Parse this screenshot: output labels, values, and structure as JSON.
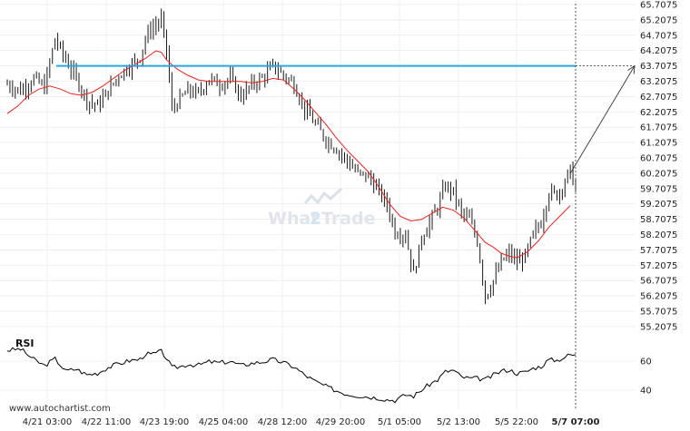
{
  "chart_data": [
    {
      "type": "candlestick",
      "title": "",
      "y_ticks": [
        "65.7075",
        "65.2075",
        "64.7075",
        "64.2075",
        "63.7075",
        "63.2075",
        "62.7075",
        "62.2075",
        "61.7075",
        "61.2075",
        "60.7075",
        "60.2075",
        "59.7075",
        "59.2075",
        "58.7075",
        "58.2075",
        "57.7075",
        "57.2075",
        "56.7075",
        "56.2075",
        "55.7075",
        "55.2075"
      ],
      "ylim": [
        55.0,
        65.85
      ],
      "x_ticks": [
        "4/21 03:00",
        "4/22 11:00",
        "4/23 19:00",
        "4/25 04:00",
        "4/28 12:00",
        "4/29 20:00",
        "5/1 05:00",
        "5/2 13:00",
        "5/5 22:00",
        "5/7 07:00"
      ],
      "resistance_level": 63.7075,
      "close_path": [
        [
          0,
          63.1
        ],
        [
          5,
          62.9
        ],
        [
          10,
          63.3
        ],
        [
          14,
          63.0
        ],
        [
          18,
          64.6
        ],
        [
          22,
          63.9
        ],
        [
          26,
          63.3
        ],
        [
          30,
          62.6
        ],
        [
          34,
          62.4
        ],
        [
          38,
          62.9
        ],
        [
          42,
          63.4
        ],
        [
          46,
          63.7
        ],
        [
          50,
          64.0
        ],
        [
          52,
          64.6
        ],
        [
          54,
          64.9
        ],
        [
          58,
          65.2
        ],
        [
          60,
          64.2
        ],
        [
          62,
          62.3
        ],
        [
          65,
          62.6
        ],
        [
          68,
          62.9
        ],
        [
          72,
          62.8
        ],
        [
          76,
          63.3
        ],
        [
          80,
          63.1
        ],
        [
          84,
          63.3
        ],
        [
          88,
          62.7
        ],
        [
          92,
          63.1
        ],
        [
          96,
          63.3
        ],
        [
          100,
          63.7
        ],
        [
          104,
          63.4
        ],
        [
          108,
          63.1
        ],
        [
          112,
          62.3
        ],
        [
          116,
          61.8
        ],
        [
          120,
          61.3
        ],
        [
          124,
          61.0
        ],
        [
          128,
          60.6
        ],
        [
          132,
          60.2
        ],
        [
          136,
          60.1
        ],
        [
          140,
          59.6
        ],
        [
          143,
          59.2
        ],
        [
          146,
          58.3
        ],
        [
          150,
          58.2
        ],
        [
          153,
          56.9
        ],
        [
          156,
          58.1
        ],
        [
          159,
          58.6
        ],
        [
          162,
          59.1
        ],
        [
          165,
          59.8
        ],
        [
          168,
          59.6
        ],
        [
          171,
          58.9
        ],
        [
          174,
          58.7
        ],
        [
          177,
          58.0
        ],
        [
          180,
          56.2
        ],
        [
          183,
          56.7
        ],
        [
          186,
          57.3
        ],
        [
          189,
          57.6
        ],
        [
          192,
          57.3
        ],
        [
          195,
          57.5
        ],
        [
          198,
          58.2
        ],
        [
          201,
          58.6
        ],
        [
          204,
          59.6
        ],
        [
          207,
          59.5
        ],
        [
          209,
          59.8
        ],
        [
          212,
          60.3
        ],
        [
          214,
          59.7
        ]
      ],
      "moving_average": [
        [
          0,
          62.15
        ],
        [
          4,
          62.4
        ],
        [
          8,
          62.75
        ],
        [
          12,
          62.95
        ],
        [
          16,
          63.05
        ],
        [
          20,
          62.95
        ],
        [
          24,
          62.8
        ],
        [
          28,
          62.75
        ],
        [
          32,
          62.85
        ],
        [
          36,
          63.05
        ],
        [
          40,
          63.3
        ],
        [
          44,
          63.55
        ],
        [
          48,
          63.75
        ],
        [
          52,
          63.95
        ],
        [
          56,
          64.2
        ],
        [
          58,
          64.15
        ],
        [
          60,
          63.9
        ],
        [
          64,
          63.6
        ],
        [
          68,
          63.4
        ],
        [
          72,
          63.25
        ],
        [
          76,
          63.2
        ],
        [
          80,
          63.2
        ],
        [
          84,
          63.2
        ],
        [
          88,
          63.2
        ],
        [
          92,
          63.15
        ],
        [
          96,
          63.2
        ],
        [
          100,
          63.3
        ],
        [
          104,
          63.25
        ],
        [
          108,
          62.95
        ],
        [
          112,
          62.6
        ],
        [
          116,
          62.2
        ],
        [
          120,
          61.8
        ],
        [
          124,
          61.35
        ],
        [
          128,
          60.95
        ],
        [
          132,
          60.6
        ],
        [
          136,
          60.25
        ],
        [
          140,
          59.75
        ],
        [
          144,
          59.2
        ],
        [
          148,
          58.8
        ],
        [
          152,
          58.65
        ],
        [
          156,
          58.7
        ],
        [
          160,
          58.9
        ],
        [
          164,
          59.1
        ],
        [
          168,
          59.0
        ],
        [
          172,
          58.75
        ],
        [
          176,
          58.35
        ],
        [
          180,
          57.95
        ],
        [
          183,
          57.8
        ],
        [
          186,
          57.6
        ],
        [
          189,
          57.5
        ],
        [
          192,
          57.45
        ],
        [
          196,
          57.65
        ],
        [
          200,
          58.0
        ],
        [
          204,
          58.45
        ],
        [
          208,
          58.8
        ],
        [
          212,
          59.15
        ]
      ],
      "projection": {
        "from": [
          212,
          60.2
        ],
        "to": [
          224,
          63.7075
        ]
      }
    },
    {
      "type": "line",
      "title": "RSI",
      "y_ticks": [
        "60",
        "40"
      ],
      "ylim": [
        30,
        76
      ],
      "values": [
        [
          0,
          67.5
        ],
        [
          5,
          68.4
        ],
        [
          10,
          61.1
        ],
        [
          14,
          56.9
        ],
        [
          18,
          61.6
        ],
        [
          22,
          53.2
        ],
        [
          26,
          54.6
        ],
        [
          30,
          50.6
        ],
        [
          34,
          51.7
        ],
        [
          38,
          55.7
        ],
        [
          42,
          58.3
        ],
        [
          46,
          60.3
        ],
        [
          50,
          61.3
        ],
        [
          52,
          65.0
        ],
        [
          54,
          64.5
        ],
        [
          58,
          66.6
        ],
        [
          60,
          62.0
        ],
        [
          62,
          55.4
        ],
        [
          65,
          56.2
        ],
        [
          68,
          57.8
        ],
        [
          72,
          57.2
        ],
        [
          76,
          59.6
        ],
        [
          80,
          58.9
        ],
        [
          84,
          59.8
        ],
        [
          88,
          57.0
        ],
        [
          92,
          58.5
        ],
        [
          96,
          59.4
        ],
        [
          100,
          61.1
        ],
        [
          104,
          59.0
        ],
        [
          108,
          56.0
        ],
        [
          112,
          50.5
        ],
        [
          116,
          46.0
        ],
        [
          120,
          42.6
        ],
        [
          124,
          39.6
        ],
        [
          128,
          37.2
        ],
        [
          132,
          36.2
        ],
        [
          136,
          35.4
        ],
        [
          140,
          34.5
        ],
        [
          143,
          33.5
        ],
        [
          146,
          33.0
        ],
        [
          150,
          36.8
        ],
        [
          153,
          35.9
        ],
        [
          156,
          40.2
        ],
        [
          159,
          44.0
        ],
        [
          162,
          47.1
        ],
        [
          165,
          52.8
        ],
        [
          168,
          53.7
        ],
        [
          171,
          49.1
        ],
        [
          174,
          48.1
        ],
        [
          177,
          48.1
        ],
        [
          180,
          47.2
        ],
        [
          183,
          50.3
        ],
        [
          186,
          53.2
        ],
        [
          189,
          54.0
        ],
        [
          192,
          51.6
        ],
        [
          195,
          52.4
        ],
        [
          198,
          55.1
        ],
        [
          201,
          56.3
        ],
        [
          204,
          61.0
        ],
        [
          207,
          60.6
        ],
        [
          209,
          62.0
        ],
        [
          212,
          64.5
        ],
        [
          214,
          63.8
        ]
      ]
    }
  ],
  "watermark": {
    "text_a": "What",
    "text_b": "2",
    "text_c": "Trade"
  },
  "footer": {
    "site": "www.autochartist.com"
  },
  "colors": {
    "candle": "#1a1a1a",
    "moving_average": "#e8231f",
    "resistance": "#29a8e0",
    "projection": "#333333",
    "grid": "#e6e6e6",
    "watermark": "#dde3ea"
  }
}
